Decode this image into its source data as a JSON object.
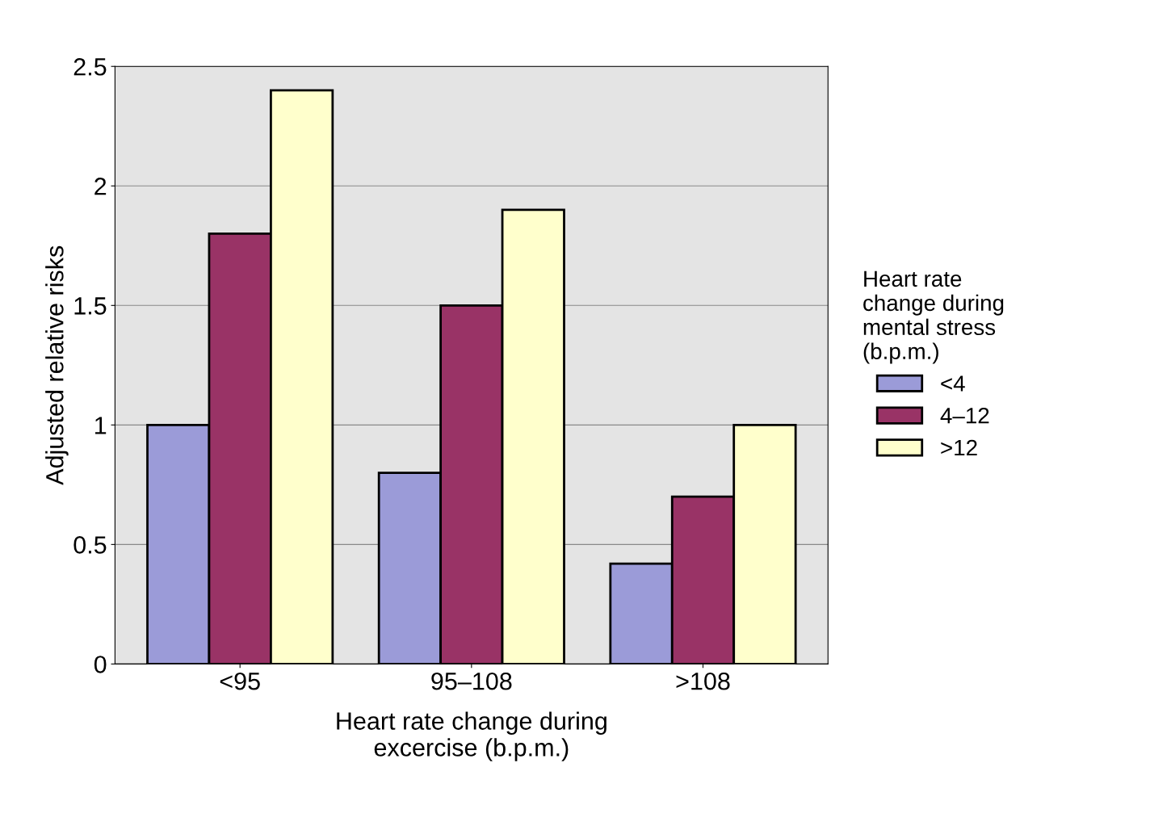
{
  "chart_data": {
    "type": "bar",
    "categories": [
      "<95",
      "95–108",
      ">108"
    ],
    "series": [
      {
        "name": "<4",
        "color": "#9b9bd8",
        "values": [
          1.0,
          0.8,
          0.42
        ]
      },
      {
        "name": "4–12",
        "color": "#993366",
        "values": [
          1.8,
          1.5,
          0.7
        ]
      },
      {
        "name": ">12",
        "color": "#ffffcc",
        "values": [
          2.4,
          1.9,
          1.0
        ]
      }
    ],
    "xlabel": "Heart rate change during\nexcercise (b.p.m.)",
    "ylabel": "Adjusted relative risks",
    "legend_title": "Heart rate\nchange during\nmental stress\n(b.p.m.)",
    "ylim": [
      0,
      2.5
    ],
    "yticks": [
      0,
      0.5,
      1,
      1.5,
      2,
      2.5
    ],
    "grid": "y",
    "legend": "right"
  }
}
